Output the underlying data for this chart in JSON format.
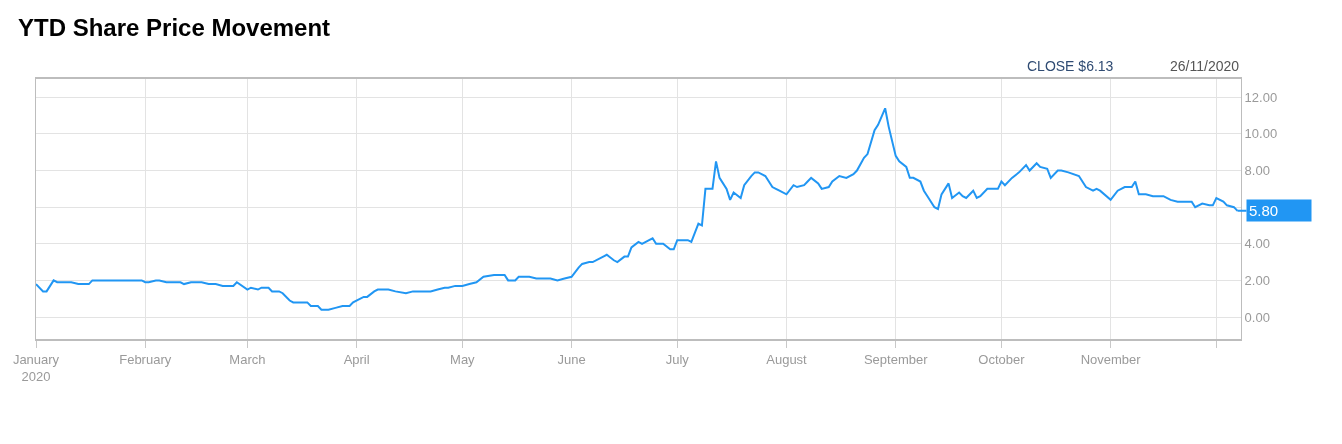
{
  "chart_data": {
    "type": "line",
    "title": "YTD Share Price Movement",
    "x": [
      "2020-01-01",
      "2020-01-03",
      "2020-01-04",
      "2020-01-06",
      "2020-01-07",
      "2020-01-11",
      "2020-01-13",
      "2020-01-16",
      "2020-01-17",
      "2020-01-19",
      "2020-01-31",
      "2020-02-01",
      "2020-02-02",
      "2020-02-04",
      "2020-02-05",
      "2020-02-07",
      "2020-02-11",
      "2020-02-12",
      "2020-02-14",
      "2020-02-17",
      "2020-02-19",
      "2020-02-20",
      "2020-02-21",
      "2020-02-23",
      "2020-02-26",
      "2020-02-27",
      "2020-03-01",
      "2020-03-02",
      "2020-03-04",
      "2020-03-05",
      "2020-03-07",
      "2020-03-08",
      "2020-03-10",
      "2020-03-11",
      "2020-03-13",
      "2020-03-14",
      "2020-03-18",
      "2020-03-19",
      "2020-03-21",
      "2020-03-22",
      "2020-03-24",
      "2020-03-26",
      "2020-03-28",
      "2020-03-30",
      "2020-03-31",
      "2020-04-03",
      "2020-04-04",
      "2020-04-06",
      "2020-04-07",
      "2020-04-10",
      "2020-04-12",
      "2020-04-15",
      "2020-04-17",
      "2020-04-18",
      "2020-04-22",
      "2020-04-24",
      "2020-04-26",
      "2020-04-27",
      "2020-04-29",
      "2020-05-01",
      "2020-05-03",
      "2020-05-05",
      "2020-05-07",
      "2020-05-10",
      "2020-05-11",
      "2020-05-13",
      "2020-05-14",
      "2020-05-16",
      "2020-05-17",
      "2020-05-20",
      "2020-05-22",
      "2020-05-26",
      "2020-05-28",
      "2020-05-30",
      "2020-06-01",
      "2020-06-03",
      "2020-06-04",
      "2020-06-06",
      "2020-06-07",
      "2020-06-10",
      "2020-06-11",
      "2020-06-13",
      "2020-06-14",
      "2020-06-16",
      "2020-06-17",
      "2020-06-18",
      "2020-06-20",
      "2020-06-21",
      "2020-06-23",
      "2020-06-24",
      "2020-06-25",
      "2020-06-27",
      "2020-06-29",
      "2020-06-30",
      "2020-07-01",
      "2020-07-03",
      "2020-07-04",
      "2020-07-05",
      "2020-07-07",
      "2020-07-08",
      "2020-07-09",
      "2020-07-11",
      "2020-07-12",
      "2020-07-13",
      "2020-07-15",
      "2020-07-16",
      "2020-07-17",
      "2020-07-19",
      "2020-07-20",
      "2020-07-22",
      "2020-07-23",
      "2020-07-24",
      "2020-07-26",
      "2020-07-28",
      "2020-07-29",
      "2020-07-30",
      "2020-08-01",
      "2020-08-03",
      "2020-08-04",
      "2020-08-06",
      "2020-08-07",
      "2020-08-08",
      "2020-08-10",
      "2020-08-11",
      "2020-08-13",
      "2020-08-14",
      "2020-08-16",
      "2020-08-18",
      "2020-08-20",
      "2020-08-21",
      "2020-08-23",
      "2020-08-24",
      "2020-08-26",
      "2020-08-27",
      "2020-08-29",
      "2020-08-30",
      "2020-09-01",
      "2020-09-02",
      "2020-09-04",
      "2020-09-05",
      "2020-09-06",
      "2020-09-08",
      "2020-09-09",
      "2020-09-10",
      "2020-09-12",
      "2020-09-13",
      "2020-09-14",
      "2020-09-16",
      "2020-09-17",
      "2020-09-19",
      "2020-09-20",
      "2020-09-21",
      "2020-09-23",
      "2020-09-24",
      "2020-09-25",
      "2020-09-27",
      "2020-09-28",
      "2020-09-30",
      "2020-10-01",
      "2020-10-02",
      "2020-10-04",
      "2020-10-06",
      "2020-10-08",
      "2020-10-09",
      "2020-10-11",
      "2020-10-12",
      "2020-10-14",
      "2020-10-15",
      "2020-10-17",
      "2020-10-18",
      "2020-10-20",
      "2020-10-23",
      "2020-10-25",
      "2020-10-27",
      "2020-10-28",
      "2020-10-29",
      "2020-11-01",
      "2020-11-03",
      "2020-11-05",
      "2020-11-07",
      "2020-11-08",
      "2020-11-09",
      "2020-11-11",
      "2020-11-13",
      "2020-11-14",
      "2020-11-16",
      "2020-11-18",
      "2020-11-20",
      "2020-11-24",
      "2020-11-25",
      "2020-11-27",
      "2020-11-29",
      "2020-11-30",
      "2020-12-01",
      "2020-12-03",
      "2020-12-04",
      "2020-12-06",
      "2020-12-07"
    ],
    "series": [
      {
        "color": "#2196f3",
        "values": [
          1.8,
          1.4,
          1.4,
          2.0,
          1.9,
          1.9,
          1.8,
          1.8,
          2.0,
          2.0,
          2.0,
          1.9,
          1.9,
          2.0,
          2.0,
          1.9,
          1.9,
          1.8,
          1.9,
          1.9,
          1.8,
          1.8,
          1.8,
          1.7,
          1.7,
          1.9,
          1.5,
          1.6,
          1.5,
          1.6,
          1.6,
          1.4,
          1.4,
          1.3,
          0.9,
          0.8,
          0.8,
          0.6,
          0.6,
          0.4,
          0.4,
          0.5,
          0.6,
          0.6,
          0.8,
          1.1,
          1.1,
          1.4,
          1.5,
          1.5,
          1.4,
          1.3,
          1.4,
          1.4,
          1.4,
          1.5,
          1.6,
          1.6,
          1.7,
          1.7,
          1.8,
          1.9,
          2.2,
          2.3,
          2.3,
          2.3,
          2.0,
          2.0,
          2.2,
          2.2,
          2.1,
          2.1,
          2.0,
          2.1,
          2.2,
          2.7,
          2.9,
          3.0,
          3.0,
          3.3,
          3.4,
          3.1,
          3.0,
          3.3,
          3.3,
          3.8,
          4.1,
          4.0,
          4.2,
          4.3,
          4.0,
          4.0,
          3.7,
          3.7,
          4.2,
          4.2,
          4.2,
          4.1,
          5.1,
          5.0,
          7.0,
          7.0,
          8.5,
          7.6,
          7.0,
          6.4,
          6.8,
          6.5,
          7.2,
          7.7,
          7.9,
          7.9,
          7.7,
          7.1,
          7.0,
          6.9,
          6.7,
          7.2,
          7.1,
          7.2,
          7.4,
          7.6,
          7.3,
          7.0,
          7.1,
          7.4,
          7.7,
          7.6,
          7.8,
          8.0,
          8.7,
          8.9,
          10.2,
          10.5,
          11.4,
          10.4,
          8.8,
          8.5,
          8.2,
          7.6,
          7.6,
          7.4,
          6.9,
          6.6,
          6.0,
          5.9,
          6.7,
          7.3,
          6.5,
          6.8,
          6.6,
          6.5,
          6.9,
          6.5,
          6.6,
          7.0,
          7.0,
          7.0,
          7.4,
          7.2,
          7.6,
          7.9,
          8.3,
          8.0,
          8.4,
          8.2,
          8.1,
          7.6,
          8.0,
          8.0,
          7.9,
          7.7,
          7.1,
          6.9,
          7.0,
          6.9,
          6.4,
          6.9,
          7.1,
          7.1,
          7.4,
          6.7,
          6.7,
          6.6,
          6.6,
          6.6,
          6.4,
          6.3,
          6.3,
          6.0,
          6.2,
          6.1,
          6.1,
          6.5,
          6.3,
          6.1,
          6.0,
          5.8
        ]
      }
    ],
    "xlim": [
      "2020-01-01",
      "2020-12-08"
    ],
    "xticks": [
      {
        "value": "2020-01-01",
        "label": "January\n2020"
      },
      {
        "value": "2020-02-01",
        "label": "February"
      },
      {
        "value": "2020-03-01",
        "label": "March"
      },
      {
        "value": "2020-04-01",
        "label": "April"
      },
      {
        "value": "2020-05-01",
        "label": "May"
      },
      {
        "value": "2020-06-01",
        "label": "June"
      },
      {
        "value": "2020-07-01",
        "label": "July"
      },
      {
        "value": "2020-08-01",
        "label": "August"
      },
      {
        "value": "2020-09-01",
        "label": "September"
      },
      {
        "value": "2020-10-01",
        "label": "October"
      },
      {
        "value": "2020-11-01",
        "label": "November"
      },
      {
        "value": "2020-12-01",
        "label": null
      }
    ],
    "ylim": [
      -1.2,
      13
    ],
    "yticks": [
      {
        "value": 0,
        "label": "0.00"
      },
      {
        "value": 2,
        "label": "2.00"
      },
      {
        "value": 4,
        "label": "4.00"
      },
      {
        "value": 6,
        "label": null
      },
      {
        "value": 8,
        "label": "8.00"
      },
      {
        "value": 10,
        "label": "10.00"
      },
      {
        "value": 12,
        "label": "12.00"
      }
    ],
    "grid": true,
    "annotations": [
      "CLOSE $6.13",
      "26/11/2020",
      {
        "text": "5.80",
        "x": "2020-12-07",
        "y": 5.8
      }
    ]
  }
}
